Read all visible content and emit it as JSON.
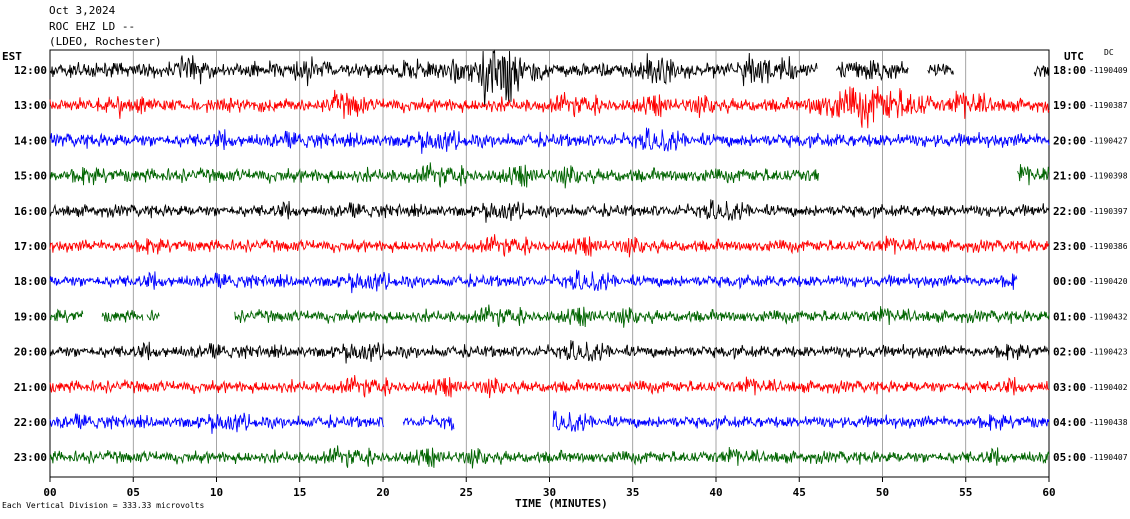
{
  "header": {
    "date": "Oct 3,2024",
    "station": "ROC EHZ LD --",
    "network": "(LDEO, Rochester)"
  },
  "left_zone_label": "EST",
  "right_zone_label": "UTC",
  "dc_label": "DC",
  "footer_note": "Each Vertical Division = 333.33 microvolts",
  "chart_data": {
    "type": "line",
    "title": "Oct 3,2024 ROC EHZ LD -- (LDEO, Rochester)",
    "xlabel": "TIME (MINUTES)",
    "ylabel": "",
    "xlim": [
      0,
      60
    ],
    "x_ticks": [
      "00",
      "05",
      "10",
      "15",
      "20",
      "25",
      "30",
      "35",
      "40",
      "45",
      "50",
      "55",
      "60"
    ],
    "grid": true,
    "colors": [
      "#000000",
      "#ff0000",
      "#0000ff",
      "#006400"
    ],
    "rows": [
      {
        "left": "12:00",
        "right": "18:00",
        "dc": "-1190409",
        "color": "#000000",
        "gaps": [
          [
            46.1,
            47.2
          ],
          [
            51.6,
            52.7
          ],
          [
            54.3,
            59.1
          ]
        ],
        "amp": 1.0
      },
      {
        "left": "13:00",
        "right": "19:00",
        "dc": "-1190387",
        "color": "#ff0000",
        "gaps": [],
        "amp": 0.9
      },
      {
        "left": "14:00",
        "right": "20:00",
        "dc": "-1190427",
        "color": "#0000ff",
        "gaps": [],
        "amp": 0.9
      },
      {
        "left": "15:00",
        "right": "21:00",
        "dc": "-1190398",
        "color": "#006400",
        "gaps": [
          [
            46.2,
            58.1
          ]
        ],
        "amp": 0.9
      },
      {
        "left": "16:00",
        "right": "22:00",
        "dc": "-1190397",
        "color": "#000000",
        "gaps": [],
        "amp": 0.8
      },
      {
        "left": "17:00",
        "right": "23:00",
        "dc": "-1190386",
        "color": "#ff0000",
        "gaps": [],
        "amp": 0.8
      },
      {
        "left": "18:00",
        "right": "00:00",
        "dc": "-1190420",
        "color": "#0000ff",
        "gaps": [
          [
            58.1,
            60
          ]
        ],
        "amp": 0.8
      },
      {
        "left": "19:00",
        "right": "01:00",
        "dc": "-1190432",
        "color": "#006400",
        "gaps": [
          [
            2.0,
            3.1
          ],
          [
            5.6,
            5.8
          ],
          [
            6.6,
            11.1
          ]
        ],
        "amp": 0.8
      },
      {
        "left": "20:00",
        "right": "02:00",
        "dc": "-1190423",
        "color": "#000000",
        "gaps": [],
        "amp": 0.8
      },
      {
        "left": "21:00",
        "right": "03:00",
        "dc": "-1190402",
        "color": "#ff0000",
        "gaps": [],
        "amp": 0.8
      },
      {
        "left": "22:00",
        "right": "04:00",
        "dc": "-1190438",
        "color": "#0000ff",
        "gaps": [
          [
            20.1,
            21.2
          ],
          [
            24.3,
            30.2
          ]
        ],
        "amp": 0.8
      },
      {
        "left": "23:00",
        "right": "05:00",
        "dc": "-1190407",
        "color": "#006400",
        "gaps": [],
        "amp": 0.8
      }
    ],
    "events": [
      {
        "row": 0,
        "start": 23.0,
        "end": 30.0,
        "amp": 2.6
      },
      {
        "row": 0,
        "start": 47.2,
        "end": 51.6,
        "amp": 2.0
      },
      {
        "row": 1,
        "start": 45.5,
        "end": 53.0,
        "amp": 3.2
      },
      {
        "row": 1,
        "start": 53.0,
        "end": 58.0,
        "amp": 1.6
      }
    ]
  }
}
